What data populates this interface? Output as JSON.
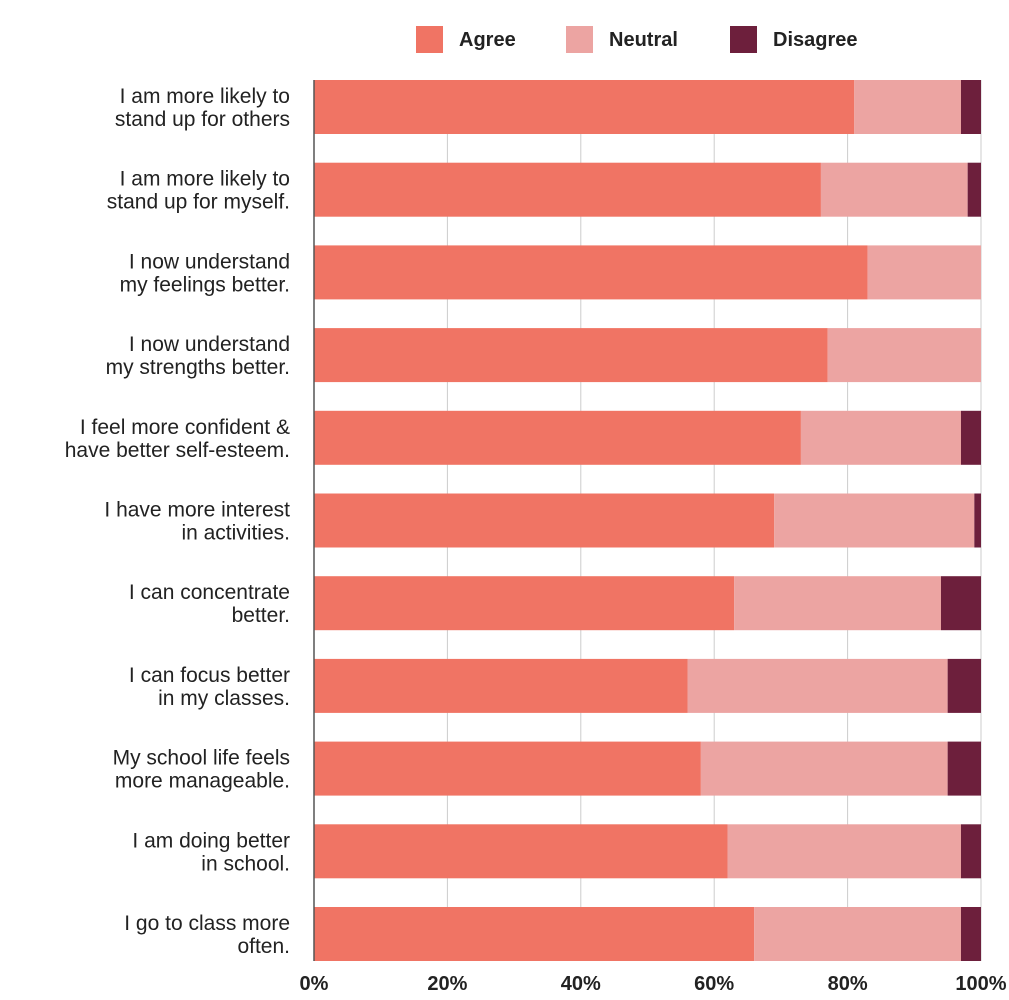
{
  "chart_data": {
    "type": "bar",
    "orientation": "horizontal",
    "stacked": true,
    "categories": [
      [
        "I am more likely to",
        "stand up for others"
      ],
      [
        "I am more likely to",
        "stand up for myself."
      ],
      [
        "I now understand",
        "my feelings better."
      ],
      [
        "I now understand",
        "my strengths better."
      ],
      [
        "I feel more confident &",
        "have better self-esteem."
      ],
      [
        "I have more interest",
        "in activities."
      ],
      [
        "I can concentrate",
        "better."
      ],
      [
        "I can focus better",
        "in my classes."
      ],
      [
        "My school life feels",
        "more manageable."
      ],
      [
        "I am doing better",
        "in school."
      ],
      [
        "I go to class more",
        "often."
      ]
    ],
    "series": [
      {
        "name": "Agree",
        "color": "#f07464",
        "values": [
          81,
          76,
          83,
          77,
          73,
          69,
          63,
          56,
          58,
          62,
          66
        ]
      },
      {
        "name": "Neutral",
        "color": "#eca4a2",
        "values": [
          16,
          22,
          17,
          23,
          24,
          30,
          31,
          39,
          37,
          35,
          31
        ]
      },
      {
        "name": "Disagree",
        "color": "#6d1f3c",
        "values": [
          3,
          2,
          0,
          0,
          3,
          1,
          6,
          5,
          5,
          3,
          3
        ]
      }
    ],
    "x_ticks": [
      "0%",
      "20%",
      "40%",
      "60%",
      "80%",
      "100%"
    ],
    "xlim": [
      0,
      100
    ],
    "grid": true,
    "legend_position": "top"
  }
}
